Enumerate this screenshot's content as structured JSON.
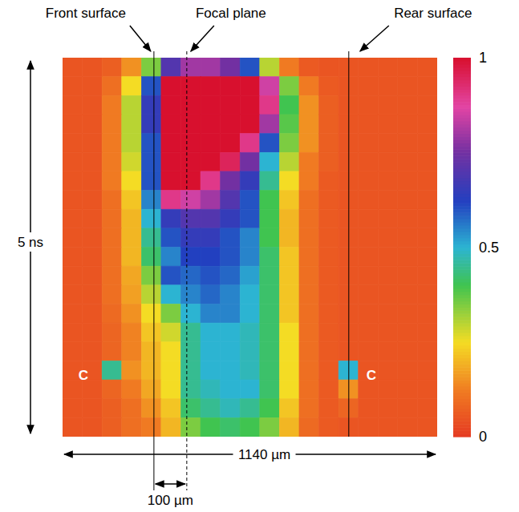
{
  "chart_data": {
    "type": "heatmap",
    "xlim": [
      0,
      1140
    ],
    "ylim": [
      0,
      5
    ],
    "tick_labels": false,
    "x_label": "1140 µm",
    "y_label": "5 ns",
    "x_bins": [
      0,
      60,
      120,
      180,
      240,
      300,
      360,
      420,
      480,
      540,
      600,
      660,
      720,
      780,
      840,
      900,
      960,
      1020,
      1080,
      1140
    ],
    "y_bins": [
      0,
      0.25,
      0.5,
      0.75,
      1,
      1.25,
      1.5,
      1.75,
      2,
      2.25,
      2.5,
      2.75,
      3,
      3.25,
      3.5,
      3.75,
      4,
      4.25,
      4.5,
      4.75,
      5
    ],
    "values": [
      [
        0.05,
        0.05,
        0.07,
        0.15,
        0.35,
        0.7,
        0.8,
        0.8,
        0.75,
        0.6,
        0.3,
        0.12,
        0.06,
        0.05,
        0.05,
        0.05,
        0.05,
        0.05,
        0.05
      ],
      [
        0.05,
        0.05,
        0.1,
        0.25,
        0.6,
        1,
        1,
        1,
        1,
        1,
        0.85,
        0.35,
        0.12,
        0.06,
        0.05,
        0.05,
        0.05,
        0.05,
        0.05
      ],
      [
        0.05,
        0.05,
        0.12,
        0.3,
        0.65,
        1,
        1,
        1,
        1,
        1,
        0.9,
        0.4,
        0.15,
        0.07,
        0.05,
        0.05,
        0.05,
        0.05,
        0.05
      ],
      [
        0.05,
        0.05,
        0.12,
        0.3,
        0.65,
        1,
        1,
        1,
        1,
        1,
        0.8,
        0.38,
        0.15,
        0.07,
        0.05,
        0.05,
        0.05,
        0.05,
        0.05
      ],
      [
        0.05,
        0.05,
        0.12,
        0.3,
        0.6,
        1,
        1,
        1,
        1,
        0.9,
        0.6,
        0.35,
        0.15,
        0.07,
        0.05,
        0.05,
        0.05,
        0.05,
        0.05
      ],
      [
        0.05,
        0.05,
        0.12,
        0.28,
        0.6,
        1,
        1,
        1,
        0.95,
        0.75,
        0.5,
        0.3,
        0.12,
        0.07,
        0.05,
        0.05,
        0.05,
        0.05,
        0.05
      ],
      [
        0.05,
        0.05,
        0.12,
        0.25,
        0.6,
        1,
        1,
        0.9,
        0.75,
        0.65,
        0.45,
        0.25,
        0.12,
        0.06,
        0.05,
        0.05,
        0.05,
        0.05,
        0.05
      ],
      [
        0.05,
        0.05,
        0.1,
        0.22,
        0.55,
        0.9,
        0.85,
        0.8,
        0.7,
        0.6,
        0.4,
        0.22,
        0.1,
        0.06,
        0.05,
        0.05,
        0.05,
        0.05,
        0.05
      ],
      [
        0.05,
        0.05,
        0.1,
        0.2,
        0.5,
        0.65,
        0.7,
        0.7,
        0.65,
        0.6,
        0.4,
        0.2,
        0.1,
        0.06,
        0.05,
        0.05,
        0.05,
        0.05,
        0.05
      ],
      [
        0.05,
        0.05,
        0.1,
        0.2,
        0.45,
        0.6,
        0.65,
        0.65,
        0.6,
        0.55,
        0.4,
        0.2,
        0.1,
        0.06,
        0.05,
        0.05,
        0.05,
        0.05,
        0.05
      ],
      [
        0.05,
        0.05,
        0.1,
        0.2,
        0.42,
        0.55,
        0.62,
        0.62,
        0.6,
        0.55,
        0.42,
        0.22,
        0.1,
        0.06,
        0.05,
        0.05,
        0.05,
        0.05,
        0.05
      ],
      [
        0.05,
        0.05,
        0.1,
        0.18,
        0.35,
        0.6,
        0.58,
        0.6,
        0.58,
        0.52,
        0.42,
        0.22,
        0.1,
        0.06,
        0.05,
        0.05,
        0.05,
        0.05,
        0.05
      ],
      [
        0.05,
        0.05,
        0.1,
        0.17,
        0.3,
        0.5,
        0.55,
        0.58,
        0.55,
        0.5,
        0.42,
        0.22,
        0.1,
        0.06,
        0.05,
        0.05,
        0.05,
        0.05,
        0.05
      ],
      [
        0.05,
        0.05,
        0.09,
        0.15,
        0.25,
        0.35,
        0.5,
        0.55,
        0.55,
        0.5,
        0.42,
        0.22,
        0.1,
        0.06,
        0.05,
        0.05,
        0.05,
        0.05,
        0.05
      ],
      [
        0.05,
        0.05,
        0.08,
        0.13,
        0.22,
        0.28,
        0.45,
        0.5,
        0.5,
        0.48,
        0.42,
        0.25,
        0.1,
        0.06,
        0.05,
        0.05,
        0.05,
        0.05,
        0.05
      ],
      [
        0.05,
        0.05,
        0.08,
        0.13,
        0.2,
        0.25,
        0.45,
        0.5,
        0.5,
        0.48,
        0.42,
        0.25,
        0.1,
        0.06,
        0.05,
        0.05,
        0.05,
        0.05,
        0.05
      ],
      [
        0.05,
        0.05,
        0.45,
        0.15,
        0.2,
        0.25,
        0.45,
        0.5,
        0.5,
        0.48,
        0.42,
        0.25,
        0.1,
        0.06,
        0.5,
        0.05,
        0.05,
        0.05,
        0.05
      ],
      [
        0.05,
        0.05,
        0.08,
        0.12,
        0.18,
        0.25,
        0.45,
        0.48,
        0.5,
        0.5,
        0.42,
        0.25,
        0.1,
        0.06,
        0.15,
        0.05,
        0.05,
        0.05,
        0.05
      ],
      [
        0.05,
        0.05,
        0.07,
        0.1,
        0.15,
        0.22,
        0.42,
        0.45,
        0.48,
        0.45,
        0.4,
        0.22,
        0.1,
        0.06,
        0.08,
        0.05,
        0.05,
        0.05,
        0.05
      ],
      [
        0.05,
        0.05,
        0.07,
        0.1,
        0.12,
        0.2,
        0.35,
        0.4,
        0.42,
        0.4,
        0.35,
        0.2,
        0.09,
        0.06,
        0.05,
        0.05,
        0.05,
        0.05,
        0.05
      ]
    ],
    "colorbar": {
      "range": [
        0,
        1
      ],
      "ticks": [
        0,
        0.5,
        1
      ]
    },
    "lines": [
      {
        "label": "Front surface",
        "x": 278,
        "line_style": "solid"
      },
      {
        "label": "Focal plane",
        "x": 378,
        "line_style": "dashed"
      },
      {
        "label": "Rear surface",
        "x": 871,
        "line_style": "solid"
      }
    ],
    "annotations": [
      {
        "text": "100 µm",
        "x1": 278,
        "x2": 378
      },
      {
        "text": "C",
        "x": 107,
        "y": 4.19
      },
      {
        "text": "C",
        "x": 920,
        "y": 4.19
      }
    ]
  }
}
